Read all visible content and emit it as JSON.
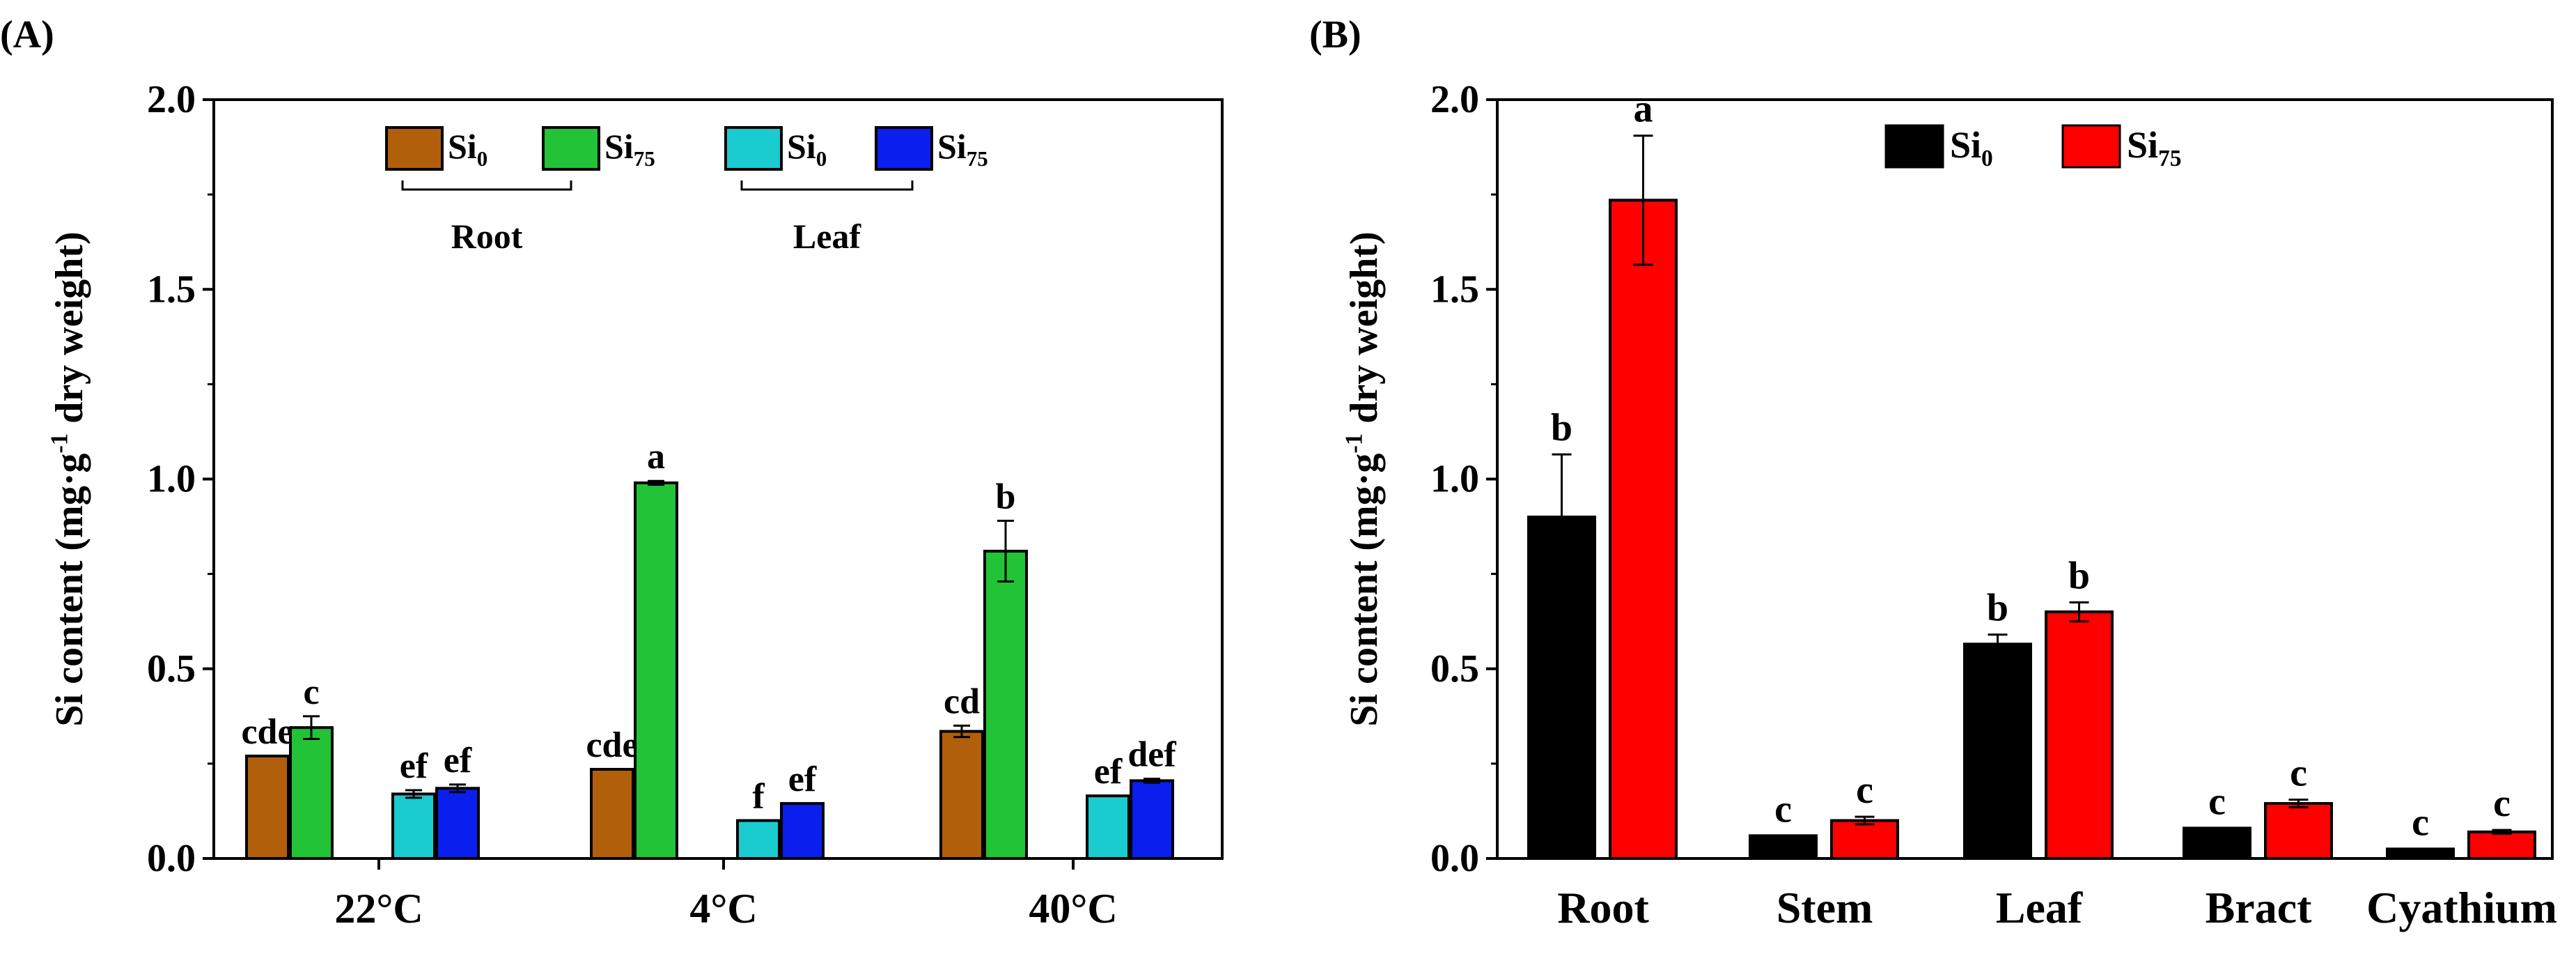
{
  "chart_data": [
    {
      "panel": "(A)",
      "type": "bar",
      "ylabel": "Si content (mg·g-1 dry weight)",
      "ylabel_parts": {
        "pre": "Si content (mg·g",
        "sup": "-1",
        "post": " dry weight)"
      },
      "ylim": [
        0,
        2.0
      ],
      "yticks": [
        "0.0",
        "0.5",
        "1.0",
        "1.5",
        "2.0"
      ],
      "categories": [
        "22°C",
        "4°C",
        "40°C"
      ],
      "series": [
        {
          "name": "Si0",
          "group": "Root",
          "color": "#B25F0C",
          "values": [
            0.27,
            0.235,
            0.335
          ],
          "errors": [
            0.0,
            0.0,
            0.015
          ],
          "letters": [
            "cde",
            "cde",
            "cd"
          ]
        },
        {
          "name": "Si75",
          "group": "Root",
          "color": "#22C337",
          "values": [
            0.345,
            0.99,
            0.81
          ],
          "errors": [
            0.03,
            0.005,
            0.08
          ],
          "letters": [
            "c",
            "a",
            "b"
          ]
        },
        {
          "name": "Si0",
          "group": "Leaf",
          "color": "#1ACBD0",
          "values": [
            0.17,
            0.1,
            0.165
          ],
          "errors": [
            0.01,
            0.0,
            0.0
          ],
          "letters": [
            "ef",
            "f",
            "ef"
          ]
        },
        {
          "name": "Si75",
          "group": "Leaf",
          "color": "#0A1FEE",
          "values": [
            0.185,
            0.145,
            0.205
          ],
          "errors": [
            0.01,
            0.0,
            0.005
          ],
          "letters": [
            "ef",
            "ef",
            "def"
          ]
        }
      ],
      "legend": {
        "entries": [
          {
            "base": "Si",
            "sub": "0",
            "color": "#B25F0C"
          },
          {
            "base": "Si",
            "sub": "75",
            "color": "#22C337"
          },
          {
            "base": "Si",
            "sub": "0",
            "color": "#1ACBD0"
          },
          {
            "base": "Si",
            "sub": "75",
            "color": "#0A1FEE"
          }
        ],
        "group_labels": [
          "Root",
          "Leaf"
        ],
        "placement": "top-center"
      }
    },
    {
      "panel": "(B)",
      "type": "bar",
      "ylabel": "Si content (mg·g-1 dry weight)",
      "ylabel_parts": {
        "pre": "Si content (mg·g",
        "sup": "-1",
        "post": " dry weight)"
      },
      "ylim": [
        0,
        2.0
      ],
      "yticks": [
        "0.0",
        "0.5",
        "1.0",
        "1.5",
        "2.0"
      ],
      "categories": [
        "Root",
        "Stem",
        "Leaf",
        "Bract",
        "Cyathium"
      ],
      "series": [
        {
          "name": "Si0",
          "color": "#000000",
          "values": [
            0.9,
            0.06,
            0.565,
            0.08,
            0.025
          ],
          "errors": [
            0.165,
            0.0,
            0.025,
            0.0,
            0.0
          ],
          "letters": [
            "b",
            "c",
            "b",
            "c",
            "c"
          ]
        },
        {
          "name": "Si75",
          "color": "#FF0000",
          "values": [
            1.735,
            0.1,
            0.65,
            0.145,
            0.07
          ],
          "errors": [
            0.17,
            0.01,
            0.025,
            0.01,
            0.005
          ],
          "letters": [
            "a",
            "c",
            "b",
            "c",
            "c"
          ]
        }
      ],
      "legend": {
        "entries": [
          {
            "base": "Si",
            "sub": "0",
            "color": "#000000"
          },
          {
            "base": "Si",
            "sub": "75",
            "color": "#FF0000"
          }
        ],
        "placement": "top-center"
      }
    }
  ]
}
